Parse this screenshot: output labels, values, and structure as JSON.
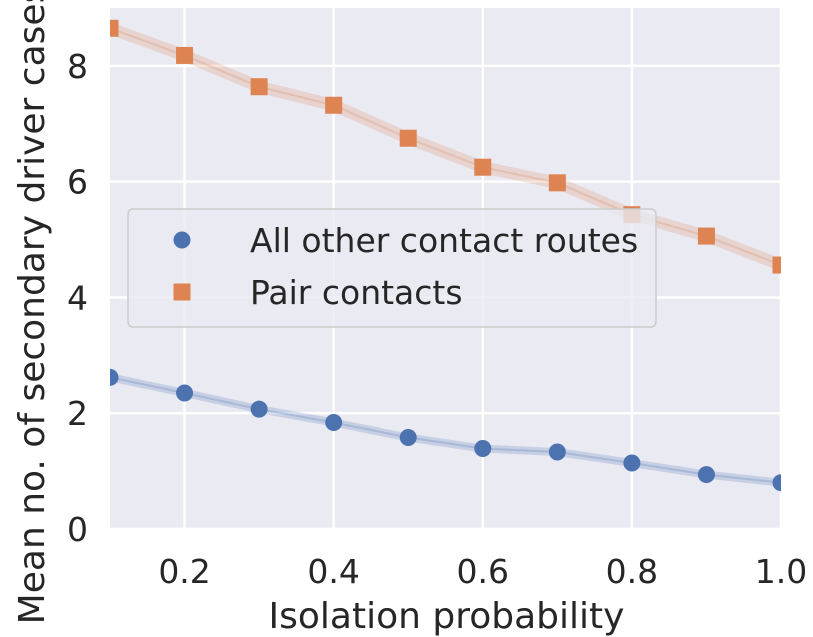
{
  "chart_data": {
    "type": "line",
    "title": "",
    "xlabel": "Isolation probability",
    "ylabel": "Mean no. of secondary driver cases",
    "xlim": [
      0.1,
      1.0
    ],
    "ylim": [
      0,
      9
    ],
    "x_ticks": [
      0.2,
      0.4,
      0.6,
      0.8,
      1.0
    ],
    "x_tick_labels": [
      "0.2",
      "0.4",
      "0.6",
      "0.8",
      "1.0"
    ],
    "y_ticks": [
      0,
      2,
      4,
      6,
      8
    ],
    "y_tick_labels": [
      "0",
      "2",
      "4",
      "6",
      "8"
    ],
    "grid": true,
    "legend_position": "center-left",
    "x": [
      0.1,
      0.2,
      0.3,
      0.4,
      0.5,
      0.6,
      0.7,
      0.8,
      0.9,
      1.0
    ],
    "series": [
      {
        "name": "All other contact routes",
        "marker": "circle",
        "color": "#4c72b0",
        "values": [
          2.62,
          2.35,
          2.07,
          1.84,
          1.58,
          1.39,
          1.33,
          1.14,
          0.94,
          0.8
        ]
      },
      {
        "name": "Pair contacts",
        "marker": "square",
        "color": "#dd8452",
        "values": [
          8.65,
          8.18,
          7.64,
          7.32,
          6.75,
          6.25,
          5.98,
          5.43,
          5.06,
          4.56
        ]
      }
    ]
  },
  "style": {
    "plot_background": "#eaeaf2",
    "grid_color": "#ffffff",
    "text_color": "#262626"
  }
}
